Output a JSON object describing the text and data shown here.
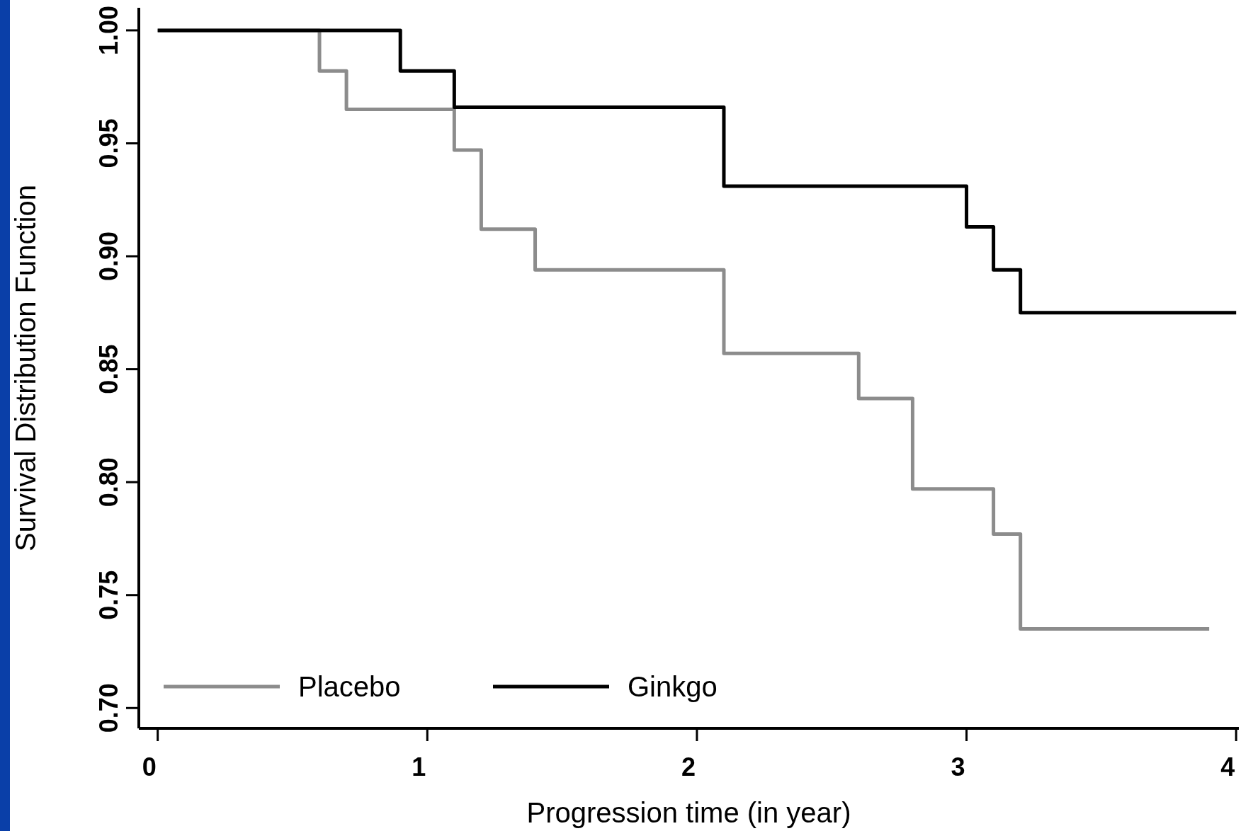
{
  "chart_data": {
    "type": "step",
    "xlabel": "Progression time (in year)",
    "ylabel": "Survival Distribution Function",
    "xlim": [
      -0.07,
      4.01
    ],
    "ylim": [
      0.691,
      1.01
    ],
    "xticks": [
      0,
      1,
      2,
      3,
      4
    ],
    "yticks": [
      {
        "value": 0.7,
        "label": "0.70"
      },
      {
        "value": 0.75,
        "label": "0.75"
      },
      {
        "value": 0.8,
        "label": "0.80"
      },
      {
        "value": 0.85,
        "label": "0.85"
      },
      {
        "value": 0.9,
        "label": "0.90"
      },
      {
        "value": 0.95,
        "label": "0.95"
      },
      {
        "value": 1.0,
        "label": "1.00"
      }
    ],
    "grid": false,
    "legend": "bottom left",
    "marker": "none",
    "line_style": "solid",
    "series": [
      {
        "name": "Placebo",
        "color": "#8c8c8c",
        "x": [
          0,
          0.6,
          0.7,
          1.1,
          1.2,
          1.4,
          2.1,
          2.6,
          2.8,
          3.1,
          3.2,
          3.9
        ],
        "values": [
          1.0,
          0.982,
          0.965,
          0.947,
          0.912,
          0.894,
          0.857,
          0.837,
          0.797,
          0.777,
          0.735,
          0.735
        ]
      },
      {
        "name": "Ginkgo",
        "color": "#000000",
        "x": [
          0,
          0.9,
          1.1,
          2.1,
          3.0,
          3.1,
          3.2,
          4.0
        ],
        "values": [
          1.0,
          0.982,
          0.966,
          0.931,
          0.913,
          0.894,
          0.875,
          0.875
        ]
      }
    ]
  }
}
